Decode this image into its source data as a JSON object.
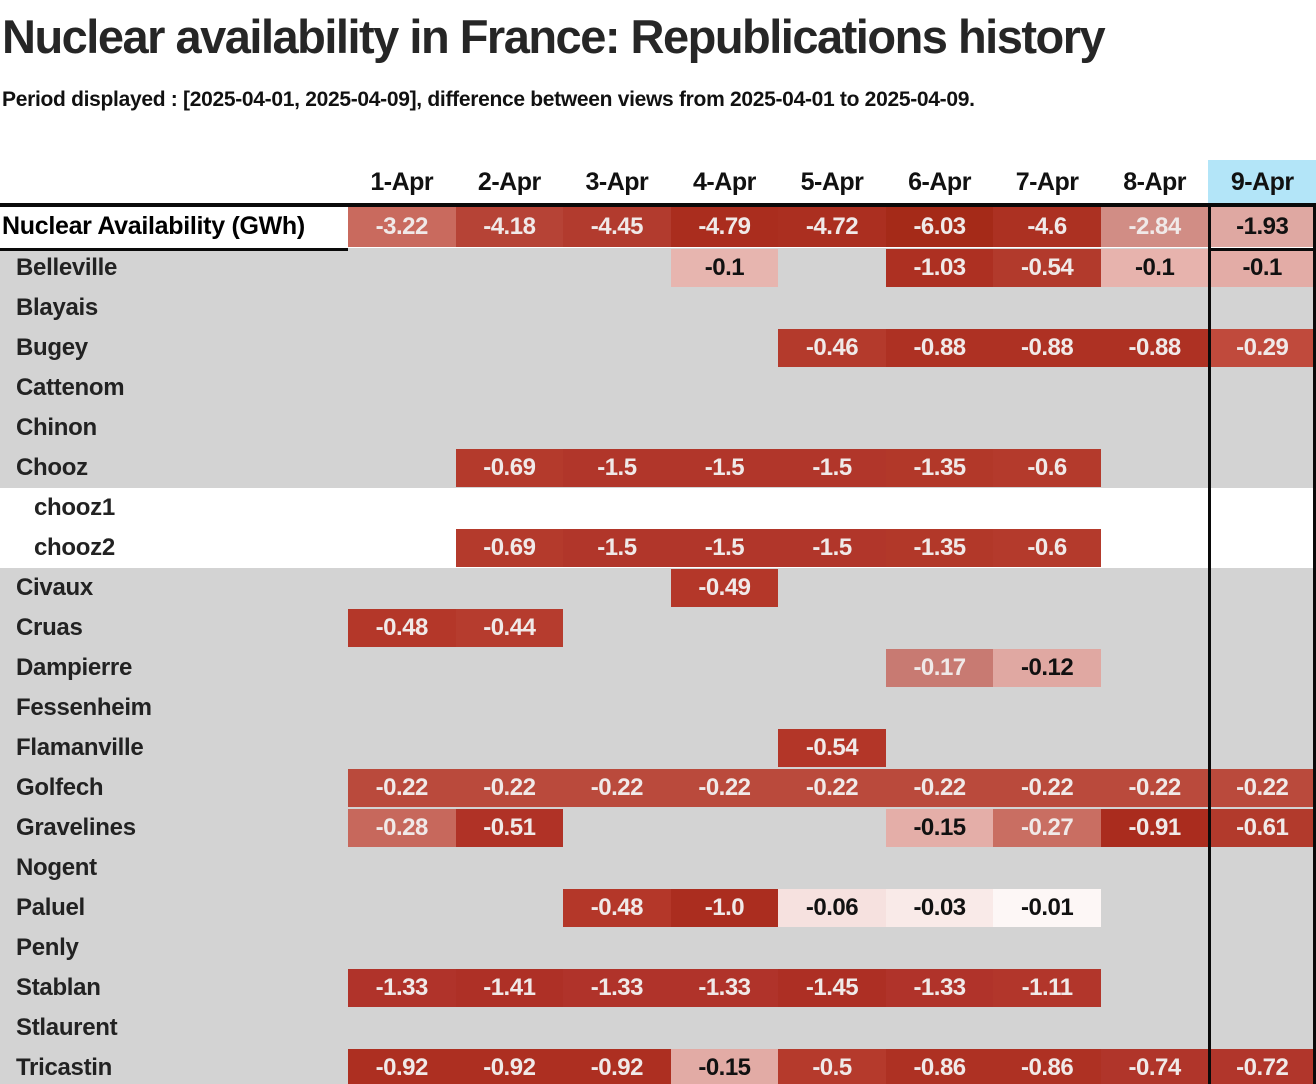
{
  "title": "Nuclear availability in France: Republications history",
  "subtitle": "Period displayed : [2025-04-01, 2025-04-09], difference between views from 2025-04-01 to 2025-04-09.",
  "colors": {
    "row_gray": "#d3d3d3",
    "row_white": "#ffffff",
    "header_highlight": "#b3e5f8",
    "border_black": "#0a0a0a",
    "text_light": "#f0e9e8",
    "text_dark": "#111111"
  },
  "chart_data": {
    "type": "heatmap",
    "unit": "GWh",
    "columns": [
      "1-Apr",
      "2-Apr",
      "3-Apr",
      "4-Apr",
      "5-Apr",
      "6-Apr",
      "7-Apr",
      "8-Apr",
      "9-Apr"
    ],
    "highlight_column": "9-Apr",
    "rows": [
      {
        "name": "Nuclear Availability (GWh)",
        "level": 0,
        "bg": "white",
        "values": [
          "-3.22",
          "-4.18",
          "-4.45",
          "-4.79",
          "-4.72",
          "-6.03",
          "-4.6",
          "-2.84",
          "-1.93"
        ],
        "cell_colors": [
          "#c96a5e",
          "#b64336",
          "#b23b2e",
          "#aa2d1e",
          "#ab2f20",
          "#a52a18",
          "#ac3122",
          "#d18d85",
          "#dfa8a2"
        ]
      },
      {
        "name": "Belleville",
        "level": 1,
        "bg": "gray",
        "values": [
          null,
          null,
          null,
          "-0.1",
          null,
          "-1.03",
          "-0.54",
          "-0.1",
          "-0.1"
        ],
        "cell_colors": [
          null,
          null,
          null,
          "#e7b5af",
          null,
          "#ad3022",
          "#b23a2c",
          "#e7b3ad",
          "#e3aca6"
        ]
      },
      {
        "name": "Blayais",
        "level": 1,
        "bg": "gray",
        "values": [
          null,
          null,
          null,
          null,
          null,
          null,
          null,
          null,
          null
        ],
        "cell_colors": [
          null,
          null,
          null,
          null,
          null,
          null,
          null,
          null,
          null
        ]
      },
      {
        "name": "Bugey",
        "level": 1,
        "bg": "gray",
        "values": [
          null,
          null,
          null,
          null,
          "-0.46",
          "-0.88",
          "-0.88",
          "-0.88",
          "-0.29"
        ],
        "cell_colors": [
          null,
          null,
          null,
          null,
          "#b43a2c",
          "#ae3123",
          "#ae3123",
          "#ae3123",
          "#c04a3c"
        ]
      },
      {
        "name": "Cattenom",
        "level": 1,
        "bg": "gray",
        "values": [
          null,
          null,
          null,
          null,
          null,
          null,
          null,
          null,
          null
        ],
        "cell_colors": [
          null,
          null,
          null,
          null,
          null,
          null,
          null,
          null,
          null
        ]
      },
      {
        "name": "Chinon",
        "level": 1,
        "bg": "gray",
        "values": [
          null,
          null,
          null,
          null,
          null,
          null,
          null,
          null,
          null
        ],
        "cell_colors": [
          null,
          null,
          null,
          null,
          null,
          null,
          null,
          null,
          null
        ]
      },
      {
        "name": "Chooz",
        "level": 1,
        "bg": "gray",
        "values": [
          null,
          "-0.69",
          "-1.5",
          "-1.5",
          "-1.5",
          "-1.35",
          "-0.6",
          null,
          null
        ],
        "cell_colors": [
          null,
          "#b43a2c",
          "#b1362a",
          "#b1362a",
          "#b1362a",
          "#b23829",
          "#b43a2c",
          null,
          null
        ]
      },
      {
        "name": "chooz1",
        "level": 2,
        "bg": "white",
        "values": [
          null,
          null,
          null,
          null,
          null,
          null,
          null,
          null,
          null
        ],
        "cell_colors": [
          null,
          null,
          null,
          null,
          null,
          null,
          null,
          null,
          null
        ]
      },
      {
        "name": "chooz2",
        "level": 2,
        "bg": "white",
        "values": [
          null,
          "-0.69",
          "-1.5",
          "-1.5",
          "-1.5",
          "-1.35",
          "-0.6",
          null,
          null
        ],
        "cell_colors": [
          null,
          "#b43a2c",
          "#b1362a",
          "#b1362a",
          "#b1362a",
          "#b23829",
          "#b43a2c",
          null,
          null
        ]
      },
      {
        "name": "Civaux",
        "level": 1,
        "bg": "gray",
        "values": [
          null,
          null,
          null,
          "-0.49",
          null,
          null,
          null,
          null,
          null
        ],
        "cell_colors": [
          null,
          null,
          null,
          "#b43729",
          null,
          null,
          null,
          null,
          null
        ]
      },
      {
        "name": "Cruas",
        "level": 1,
        "bg": "gray",
        "values": [
          "-0.48",
          "-0.44",
          null,
          null,
          null,
          null,
          null,
          null,
          null
        ],
        "cell_colors": [
          "#b43729",
          "#b63c2e",
          null,
          null,
          null,
          null,
          null,
          null,
          null
        ]
      },
      {
        "name": "Dampierre",
        "level": 1,
        "bg": "gray",
        "values": [
          null,
          null,
          null,
          null,
          null,
          "-0.17",
          "-0.12",
          null,
          null
        ],
        "cell_colors": [
          null,
          null,
          null,
          null,
          null,
          "#c87a72",
          "#e0a8a2",
          null,
          null
        ]
      },
      {
        "name": "Fessenheim",
        "level": 1,
        "bg": "gray",
        "values": [
          null,
          null,
          null,
          null,
          null,
          null,
          null,
          null,
          null
        ],
        "cell_colors": [
          null,
          null,
          null,
          null,
          null,
          null,
          null,
          null,
          null
        ]
      },
      {
        "name": "Flamanville",
        "level": 1,
        "bg": "gray",
        "values": [
          null,
          null,
          null,
          null,
          "-0.54",
          null,
          null,
          null,
          null
        ],
        "cell_colors": [
          null,
          null,
          null,
          null,
          "#b33628",
          null,
          null,
          null,
          null
        ]
      },
      {
        "name": "Golfech",
        "level": 1,
        "bg": "gray",
        "values": [
          "-0.22",
          "-0.22",
          "-0.22",
          "-0.22",
          "-0.22",
          "-0.22",
          "-0.22",
          "-0.22",
          "-0.22"
        ],
        "cell_colors": [
          "#ba4a3c",
          "#ba4a3c",
          "#ba4a3c",
          "#ba4a3c",
          "#ba4a3c",
          "#ba4a3c",
          "#ba4a3c",
          "#ba4a3c",
          "#ba4a3c"
        ]
      },
      {
        "name": "Gravelines",
        "level": 1,
        "bg": "gray",
        "values": [
          "-0.28",
          "-0.51",
          null,
          null,
          null,
          "-0.15",
          "-0.27",
          "-0.91",
          "-0.61"
        ],
        "cell_colors": [
          "#c7685c",
          "#b03226",
          null,
          null,
          null,
          "#e4aea8",
          "#c96e62",
          "#aa2c1e",
          "#b23a2c"
        ]
      },
      {
        "name": "Nogent",
        "level": 1,
        "bg": "gray",
        "values": [
          null,
          null,
          null,
          null,
          null,
          null,
          null,
          null,
          null
        ],
        "cell_colors": [
          null,
          null,
          null,
          null,
          null,
          null,
          null,
          null,
          null
        ]
      },
      {
        "name": "Paluel",
        "level": 1,
        "bg": "gray",
        "values": [
          null,
          null,
          "-0.48",
          "-1.0",
          "-0.06",
          "-0.03",
          "-0.01",
          null,
          null
        ],
        "cell_colors": [
          null,
          null,
          "#b43729",
          "#ab2d1f",
          "#f6e1df",
          "#f9eae8",
          "#fdf7f6",
          null,
          null
        ]
      },
      {
        "name": "Penly",
        "level": 1,
        "bg": "gray",
        "values": [
          null,
          null,
          null,
          null,
          null,
          null,
          null,
          null,
          null
        ],
        "cell_colors": [
          null,
          null,
          null,
          null,
          null,
          null,
          null,
          null,
          null
        ]
      },
      {
        "name": "Stablan",
        "level": 1,
        "bg": "gray",
        "values": [
          "-1.33",
          "-1.41",
          "-1.33",
          "-1.33",
          "-1.45",
          "-1.33",
          "-1.11",
          null,
          null
        ],
        "cell_colors": [
          "#b0332a",
          "#ae3026",
          "#b0332a",
          "#b0332a",
          "#ad2f24",
          "#b0332a",
          "#b2362b",
          null,
          null
        ]
      },
      {
        "name": "Stlaurent",
        "level": 1,
        "bg": "gray",
        "values": [
          null,
          null,
          null,
          null,
          null,
          null,
          null,
          null,
          null
        ],
        "cell_colors": [
          null,
          null,
          null,
          null,
          null,
          null,
          null,
          null,
          null
        ]
      },
      {
        "name": "Tricastin",
        "level": 1,
        "bg": "gray",
        "values": [
          "-0.92",
          "-0.92",
          "-0.92",
          "-0.15",
          "-0.5",
          "-0.86",
          "-0.86",
          "-0.74",
          "-0.72"
        ],
        "cell_colors": [
          "#ad2f21",
          "#ad2f21",
          "#ad2f21",
          "#e2aba5",
          "#b53a2c",
          "#ae3123",
          "#ae3123",
          "#b0352a",
          "#b1362b"
        ]
      }
    ]
  }
}
